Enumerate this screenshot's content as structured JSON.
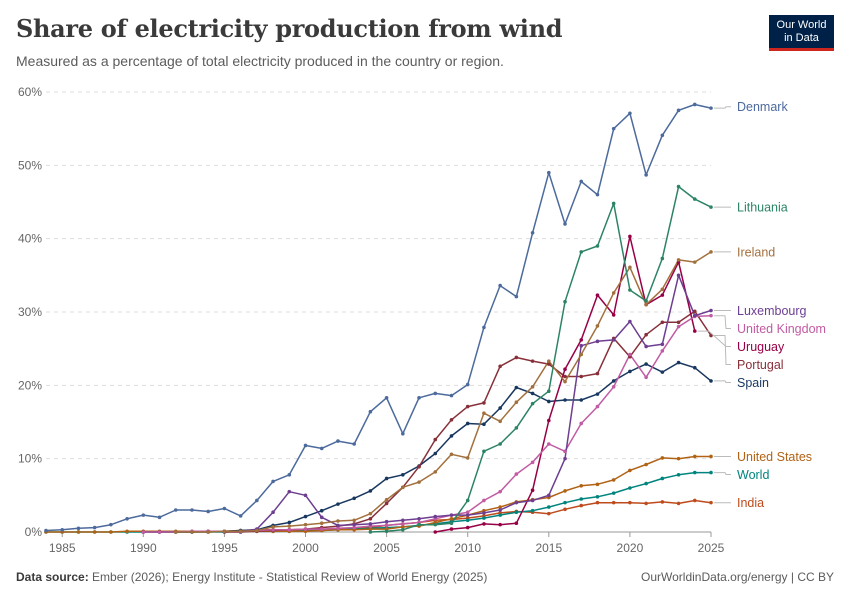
{
  "header": {
    "title": "Share of electricity production from wind",
    "subtitle": "Measured as a percentage of total electricity produced in the country or region.",
    "logo_line1": "Our World",
    "logo_line2": "in Data"
  },
  "footer": {
    "source_label": "Data source:",
    "source_text": "Ember (2026); Energy Institute - Statistical Review of World Energy (2025)",
    "credit": "OurWorldinData.org/energy | CC BY"
  },
  "chart_data": {
    "type": "line",
    "title": "Share of electricity production from wind",
    "xlabel": "",
    "ylabel": "",
    "xlim": [
      1984,
      2025
    ],
    "ylim": [
      0,
      60
    ],
    "x_ticks": [
      1985,
      1990,
      1995,
      2000,
      2005,
      2010,
      2015,
      2020,
      2025
    ],
    "y_ticks": [
      0,
      10,
      20,
      30,
      40,
      50,
      60
    ],
    "y_tick_labels": [
      "0%",
      "10%",
      "20%",
      "30%",
      "40%",
      "50%",
      "60%"
    ],
    "grid": "horizontal-dashed",
    "series": [
      {
        "name": "Denmark",
        "color": "#4c6a9c",
        "label_y": 58,
        "x": [
          1984,
          1985,
          1986,
          1987,
          1988,
          1989,
          1990,
          1991,
          1992,
          1993,
          1994,
          1995,
          1996,
          1997,
          1998,
          1999,
          2000,
          2001,
          2002,
          2003,
          2004,
          2005,
          2006,
          2007,
          2008,
          2009,
          2010,
          2011,
          2012,
          2013,
          2014,
          2015,
          2016,
          2017,
          2018,
          2019,
          2020,
          2021,
          2022,
          2023,
          2024,
          2025
        ],
        "values": [
          0.2,
          0.3,
          0.5,
          0.6,
          1.0,
          1.8,
          2.3,
          2.0,
          3.0,
          3.0,
          2.8,
          3.2,
          2.2,
          4.3,
          6.9,
          7.8,
          11.8,
          11.4,
          12.4,
          12.0,
          16.4,
          18.3,
          13.4,
          18.3,
          18.9,
          18.6,
          20.1,
          27.9,
          33.6,
          32.1,
          40.8,
          49.0,
          42.0,
          47.8,
          46.0,
          55.0,
          57.1,
          48.7,
          54.1,
          57.5,
          58.3,
          57.8
        ]
      },
      {
        "name": "Lithuania",
        "color": "#2c8465",
        "label_y": 44.3,
        "x": [
          2004,
          2005,
          2006,
          2007,
          2008,
          2009,
          2010,
          2011,
          2012,
          2013,
          2014,
          2015,
          2016,
          2017,
          2018,
          2019,
          2020,
          2021,
          2022,
          2023,
          2024,
          2025
        ],
        "values": [
          0.0,
          0.1,
          0.3,
          1.0,
          1.0,
          1.2,
          4.3,
          11.0,
          12.0,
          14.2,
          17.5,
          19.2,
          31.4,
          38.2,
          39.0,
          44.8,
          33.0,
          31.5,
          37.3,
          47.1,
          45.4,
          44.3
        ]
      },
      {
        "name": "Ireland",
        "color": "#a2703d",
        "label_y": 38.2,
        "x": [
          1992,
          1993,
          1994,
          1995,
          1996,
          1997,
          1998,
          1999,
          2000,
          2001,
          2002,
          2003,
          2004,
          2005,
          2006,
          2007,
          2008,
          2009,
          2010,
          2011,
          2012,
          2013,
          2014,
          2015,
          2016,
          2017,
          2018,
          2019,
          2020,
          2021,
          2022,
          2023,
          2024,
          2025
        ],
        "values": [
          0.0,
          0.0,
          0.0,
          0.1,
          0.1,
          0.2,
          0.7,
          0.8,
          1.0,
          1.2,
          1.5,
          1.6,
          2.5,
          4.4,
          6.1,
          6.8,
          8.2,
          10.6,
          10.1,
          16.2,
          15.1,
          17.7,
          19.8,
          23.3,
          20.5,
          24.2,
          28.1,
          32.6,
          36.1,
          31.0,
          33.1,
          37.1,
          36.8,
          38.2
        ]
      },
      {
        "name": "Luxembourg",
        "color": "#6d3e91",
        "label_y": 30.2,
        "x": [
          1996,
          1997,
          1998,
          1999,
          2000,
          2001,
          2002,
          2003,
          2004,
          2005,
          2006,
          2007,
          2008,
          2009,
          2010,
          2011,
          2012,
          2013,
          2014,
          2015,
          2016,
          2017,
          2018,
          2019,
          2020,
          2021,
          2022,
          2023,
          2024,
          2025
        ],
        "values": [
          0.0,
          0.4,
          2.7,
          5.5,
          5.0,
          2.0,
          0.9,
          1.0,
          1.1,
          1.4,
          1.6,
          1.8,
          2.1,
          2.3,
          2.3,
          2.6,
          3.0,
          4.0,
          4.3,
          5.0,
          10.0,
          25.4,
          26.0,
          26.2,
          28.7,
          25.3,
          25.6,
          35.0,
          29.5,
          30.2
        ]
      },
      {
        "name": "United Kingdom",
        "color": "#c15ba3",
        "label_y": 29.5,
        "x": [
          1990,
          1991,
          1992,
          1993,
          1994,
          1995,
          1996,
          1997,
          1998,
          1999,
          2000,
          2001,
          2002,
          2003,
          2004,
          2005,
          2006,
          2007,
          2008,
          2009,
          2010,
          2011,
          2012,
          2013,
          2014,
          2015,
          2016,
          2017,
          2018,
          2019,
          2020,
          2021,
          2022,
          2023,
          2024,
          2025
        ],
        "values": [
          0.0,
          0.0,
          0.0,
          0.1,
          0.1,
          0.1,
          0.1,
          0.2,
          0.3,
          0.3,
          0.4,
          0.4,
          0.5,
          0.6,
          0.8,
          0.9,
          1.1,
          1.3,
          1.8,
          2.3,
          2.7,
          4.3,
          5.5,
          7.9,
          9.5,
          12.0,
          11.0,
          14.8,
          17.1,
          19.8,
          24.2,
          21.1,
          24.7,
          28.0,
          29.4,
          29.5
        ]
      },
      {
        "name": "Uruguay",
        "color": "#970046",
        "label_y": 27.0,
        "x": [
          2008,
          2009,
          2010,
          2011,
          2012,
          2013,
          2014,
          2015,
          2016,
          2017,
          2018,
          2019,
          2020,
          2021,
          2022,
          2023,
          2024
        ],
        "values": [
          0.0,
          0.4,
          0.6,
          1.1,
          1.0,
          1.2,
          5.7,
          15.2,
          22.2,
          26.2,
          32.3,
          29.6,
          40.3,
          31.0,
          32.3,
          36.8,
          27.4
        ]
      },
      {
        "name": "Portugal",
        "color": "#883039",
        "label_y": 26.8,
        "x": [
          1995,
          1996,
          1997,
          1998,
          1999,
          2000,
          2001,
          2002,
          2003,
          2004,
          2005,
          2006,
          2007,
          2008,
          2009,
          2010,
          2011,
          2012,
          2013,
          2014,
          2015,
          2016,
          2017,
          2018,
          2019,
          2020,
          2021,
          2022,
          2023,
          2024,
          2025
        ],
        "values": [
          0.0,
          0.0,
          0.1,
          0.2,
          0.3,
          0.4,
          0.6,
          0.8,
          1.1,
          1.8,
          3.9,
          6.1,
          8.9,
          12.6,
          15.3,
          17.1,
          17.6,
          22.6,
          23.8,
          23.3,
          22.9,
          21.2,
          21.2,
          21.6,
          26.4,
          23.9,
          26.9,
          28.6,
          28.6,
          30.1,
          26.8
        ]
      },
      {
        "name": "Spain",
        "color": "#18375f",
        "label_y": 20.6,
        "x": [
          1990,
          1991,
          1992,
          1993,
          1994,
          1995,
          1996,
          1997,
          1998,
          1999,
          2000,
          2001,
          2002,
          2003,
          2004,
          2005,
          2006,
          2007,
          2008,
          2009,
          2010,
          2011,
          2012,
          2013,
          2014,
          2015,
          2016,
          2017,
          2018,
          2019,
          2020,
          2021,
          2022,
          2023,
          2024,
          2025
        ],
        "values": [
          0.0,
          0.0,
          0.0,
          0.0,
          0.1,
          0.1,
          0.2,
          0.3,
          0.9,
          1.3,
          2.1,
          2.9,
          3.8,
          4.6,
          5.6,
          7.3,
          7.8,
          9.0,
          10.7,
          13.1,
          14.8,
          14.7,
          16.9,
          19.7,
          18.9,
          17.8,
          18.0,
          18.0,
          18.8,
          20.6,
          21.9,
          22.9,
          21.8,
          23.1,
          22.4,
          20.6
        ]
      },
      {
        "name": "United States",
        "color": "#b16214",
        "label_y": 10.3,
        "x": [
          1984,
          1985,
          1986,
          1987,
          1988,
          1989,
          1990,
          1991,
          1992,
          1993,
          1994,
          1995,
          1996,
          1997,
          1998,
          1999,
          2000,
          2001,
          2002,
          2003,
          2004,
          2005,
          2006,
          2007,
          2008,
          2009,
          2010,
          2011,
          2012,
          2013,
          2014,
          2015,
          2016,
          2017,
          2018,
          2019,
          2020,
          2021,
          2022,
          2023,
          2024,
          2025
        ],
        "values": [
          0.0,
          0.0,
          0.0,
          0.0,
          0.0,
          0.1,
          0.1,
          0.1,
          0.1,
          0.1,
          0.1,
          0.1,
          0.1,
          0.1,
          0.1,
          0.1,
          0.1,
          0.2,
          0.3,
          0.3,
          0.4,
          0.4,
          0.7,
          0.8,
          1.3,
          1.8,
          2.3,
          2.9,
          3.4,
          4.1,
          4.4,
          4.7,
          5.6,
          6.3,
          6.5,
          7.1,
          8.4,
          9.2,
          10.1,
          10.0,
          10.3,
          10.3
        ]
      },
      {
        "name": "World",
        "color": "#00847e",
        "label_y": 8.1,
        "x": [
          1984,
          1985,
          1986,
          1987,
          1988,
          1989,
          1990,
          1991,
          1992,
          1993,
          1994,
          1995,
          1996,
          1997,
          1998,
          1999,
          2000,
          2001,
          2002,
          2003,
          2004,
          2005,
          2006,
          2007,
          2008,
          2009,
          2010,
          2011,
          2012,
          2013,
          2014,
          2015,
          2016,
          2017,
          2018,
          2019,
          2020,
          2021,
          2022,
          2023,
          2024,
          2025
        ],
        "values": [
          0.0,
          0.0,
          0.0,
          0.0,
          0.0,
          0.0,
          0.0,
          0.0,
          0.0,
          0.0,
          0.0,
          0.0,
          0.1,
          0.1,
          0.1,
          0.1,
          0.2,
          0.2,
          0.3,
          0.4,
          0.5,
          0.6,
          0.7,
          0.9,
          1.1,
          1.4,
          1.6,
          1.9,
          2.3,
          2.7,
          2.9,
          3.4,
          4.0,
          4.5,
          4.8,
          5.3,
          6.0,
          6.6,
          7.3,
          7.8,
          8.1,
          8.1
        ]
      },
      {
        "name": "India",
        "color": "#be4b1c",
        "label_y": 4.0,
        "x": [
          1990,
          1991,
          1992,
          1993,
          1994,
          1995,
          1996,
          1997,
          1998,
          1999,
          2000,
          2001,
          2002,
          2003,
          2004,
          2005,
          2006,
          2007,
          2008,
          2009,
          2010,
          2011,
          2012,
          2013,
          2014,
          2015,
          2016,
          2017,
          2018,
          2019,
          2020,
          2021,
          2022,
          2023,
          2024,
          2025
        ],
        "values": [
          0.0,
          0.0,
          0.0,
          0.0,
          0.0,
          0.1,
          0.2,
          0.3,
          0.3,
          0.3,
          0.3,
          0.3,
          0.4,
          0.5,
          0.6,
          0.9,
          1.1,
          1.3,
          1.6,
          1.7,
          1.9,
          2.2,
          2.6,
          2.8,
          2.7,
          2.5,
          3.1,
          3.6,
          4.0,
          4.0,
          4.0,
          3.9,
          4.1,
          3.9,
          4.3,
          4.0
        ]
      }
    ]
  }
}
